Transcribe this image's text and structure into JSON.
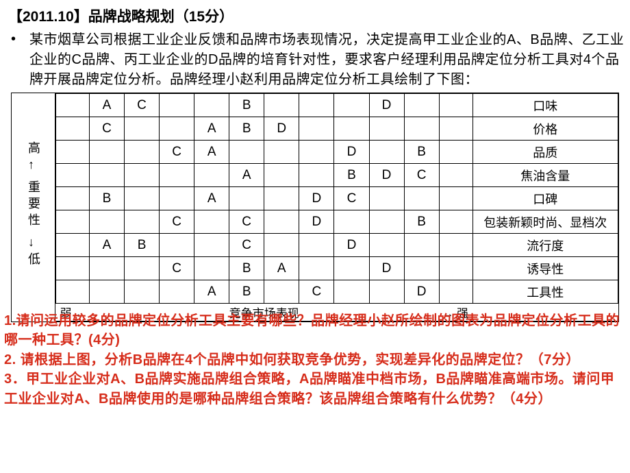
{
  "title": "【2011.10】品牌战略规划（15分）",
  "body": "某市烟草公司根据工业企业反馈和品牌市场表现情况，决定提高甲工业企业的A、B品牌、乙工业企业的C品牌、丙工业企业的D品牌的培育针对性，要求客户经理利用品牌定位分析工具对4个品牌开展品牌定位分析。品牌经理小赵利用品牌定位分析工具绘制了下图：",
  "y_axis": {
    "top": "高",
    "arrow_up": "↑",
    "mid1": "重",
    "mid2": "要",
    "mid3": "性",
    "arrow_down": "↓",
    "bottom": "低"
  },
  "x_axis": {
    "left": "弱",
    "center": "竞争市场表现",
    "right": "强"
  },
  "attrs": [
    "口味",
    "价格",
    "品质",
    "焦油含量",
    "口碑",
    "包装新颖时尚、显档次",
    "流行度",
    "诱导性",
    "工具性"
  ],
  "grid": [
    [
      "",
      "A",
      "C",
      "",
      "",
      "B",
      "",
      "",
      "",
      "D",
      "",
      ""
    ],
    [
      "",
      "C",
      "",
      "",
      "A",
      "B",
      "D",
      "",
      "",
      "",
      "",
      ""
    ],
    [
      "",
      "",
      "",
      "C",
      "A",
      "",
      "",
      "",
      "D",
      "",
      "B",
      ""
    ],
    [
      "",
      "",
      "",
      "",
      "",
      "A",
      "",
      "",
      "B",
      "D",
      "C",
      ""
    ],
    [
      "",
      "B",
      "",
      "",
      "A",
      "",
      "",
      "D",
      "C",
      "",
      "",
      ""
    ],
    [
      "",
      "",
      "",
      "C",
      "",
      "C",
      "",
      "D",
      "",
      "",
      "B",
      ""
    ],
    [
      "",
      "A",
      "B",
      "",
      "",
      "C",
      "",
      "",
      "D",
      "",
      "",
      ""
    ],
    [
      "",
      "",
      "",
      "C",
      "",
      "B",
      "A",
      "",
      "",
      "D",
      "",
      ""
    ],
    [
      "",
      "",
      "",
      "",
      "A",
      "B",
      "",
      "C",
      "",
      "",
      "D",
      ""
    ]
  ],
  "q1": "1.请问运用较多的品牌定位分析工具主要有哪些？品牌经理小赵所绘制的图表为品牌定位分析工具的哪一种工具？(4分)",
  "q2": "2. 请根据上图，分析B品牌在4个品牌中如何获取竞争优势，实现差异化的品牌定位？（7分）",
  "q3": "3．甲工业企业对A、B品牌实施品牌组合策略，A品牌瞄准中档市场，B品牌瞄准高端市场。请问甲工业企业对A、B品牌使用的是哪种品牌组合策略？该品牌组合策略有什么优势？（4分）",
  "colors": {
    "accent": "#d62c1a",
    "text": "#000000",
    "bg": "#ffffff",
    "border": "#000000"
  }
}
